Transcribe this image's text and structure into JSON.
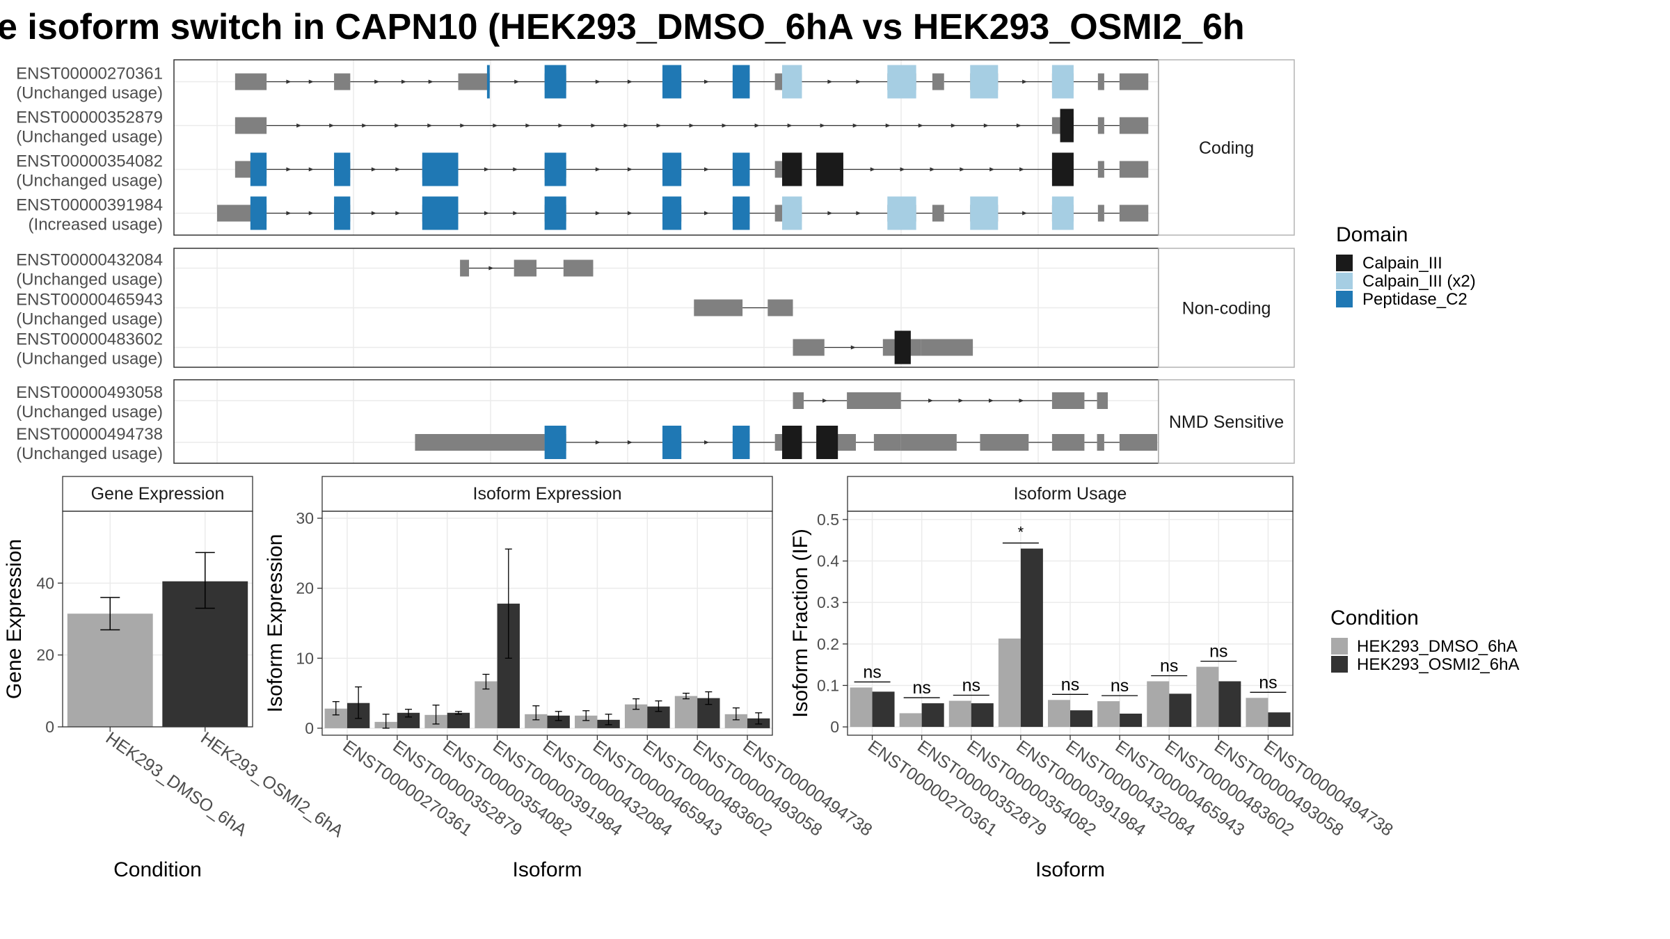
{
  "title": "e isoform switch in CAPN10 (HEK293_DMSO_6hA vs HEK293_OSMI2_6h",
  "colors": {
    "exon": "#808080",
    "calpain_iii": "#1a1a1a",
    "calpain_iii_x2": "#a6cee3",
    "peptidase_c2": "#1f78b4",
    "cond_dmso": "#a9a9a9",
    "cond_osmi2": "#333333",
    "grid": "#ebebeb",
    "strip_bg": "#ffffff"
  },
  "structure": {
    "coordinate_range": [
      0,
      1000
    ],
    "groups": [
      {
        "label": "Coding",
        "transcripts": [
          {
            "id": "ENST00000270361",
            "usage": "(Unchanged usage)",
            "exons": [
              [
                20,
                55
              ],
              [
                130,
                148
              ],
              [
                268,
                303
              ],
              [
                364,
                388
              ],
              [
                495,
                516
              ],
              [
                573,
                592
              ],
              [
                620,
                650
              ],
              [
                745,
                777
              ],
              [
                795,
                808
              ],
              [
                837,
                868
              ],
              [
                928,
                952
              ],
              [
                979,
                986
              ],
              [
                1003,
                1035
              ]
            ],
            "domains": [
              [
                300,
                303,
                "peptidase_c2"
              ],
              [
                364,
                388,
                "peptidase_c2"
              ],
              [
                495,
                516,
                "peptidase_c2"
              ],
              [
                573,
                592,
                "peptidase_c2"
              ],
              [
                628,
                650,
                "calpain_iii_x2"
              ],
              [
                745,
                777,
                "calpain_iii_x2"
              ],
              [
                837,
                868,
                "calpain_iii_x2"
              ],
              [
                928,
                952,
                "calpain_iii_x2"
              ]
            ]
          },
          {
            "id": "ENST00000352879",
            "usage": "(Unchanged usage)",
            "exons": [
              [
                20,
                55
              ],
              [
                928,
                952
              ],
              [
                979,
                986
              ],
              [
                1003,
                1035
              ]
            ],
            "domains": [
              [
                937,
                952,
                "calpain_iii"
              ]
            ]
          },
          {
            "id": "ENST00000354082",
            "usage": "(Unchanged usage)",
            "exons": [
              [
                20,
                55
              ],
              [
                130,
                148
              ],
              [
                228,
                268
              ],
              [
                364,
                388
              ],
              [
                495,
                516
              ],
              [
                573,
                592
              ],
              [
                620,
                650
              ],
              [
                666,
                696
              ],
              [
                928,
                952
              ],
              [
                979,
                986
              ],
              [
                1003,
                1035
              ]
            ],
            "domains": [
              [
                37,
                55,
                "peptidase_c2"
              ],
              [
                130,
                148,
                "peptidase_c2"
              ],
              [
                228,
                268,
                "peptidase_c2"
              ],
              [
                364,
                388,
                "peptidase_c2"
              ],
              [
                495,
                516,
                "peptidase_c2"
              ],
              [
                573,
                592,
                "peptidase_c2"
              ],
              [
                628,
                650,
                "calpain_iii"
              ],
              [
                666,
                696,
                "calpain_iii"
              ],
              [
                928,
                952,
                "calpain_iii"
              ]
            ]
          },
          {
            "id": "ENST00000391984",
            "usage": "(Increased usage)",
            "exons": [
              [
                0,
                55
              ],
              [
                130,
                148
              ],
              [
                228,
                268
              ],
              [
                364,
                388
              ],
              [
                495,
                516
              ],
              [
                573,
                592
              ],
              [
                620,
                650
              ],
              [
                745,
                777
              ],
              [
                795,
                808
              ],
              [
                837,
                868
              ],
              [
                928,
                952
              ],
              [
                979,
                986
              ],
              [
                1003,
                1035
              ]
            ],
            "domains": [
              [
                37,
                55,
                "peptidase_c2"
              ],
              [
                130,
                148,
                "peptidase_c2"
              ],
              [
                228,
                268,
                "peptidase_c2"
              ],
              [
                364,
                388,
                "peptidase_c2"
              ],
              [
                495,
                516,
                "peptidase_c2"
              ],
              [
                573,
                592,
                "peptidase_c2"
              ],
              [
                628,
                650,
                "calpain_iii_x2"
              ],
              [
                745,
                777,
                "calpain_iii_x2"
              ],
              [
                837,
                868,
                "calpain_iii_x2"
              ],
              [
                928,
                952,
                "calpain_iii_x2"
              ]
            ]
          }
        ]
      },
      {
        "label": "Non-coding",
        "transcripts": [
          {
            "id": "ENST00000432084",
            "usage": "(Unchanged usage)",
            "exons": [
              [
                270,
                280
              ],
              [
                330,
                355
              ],
              [
                385,
                418
              ]
            ],
            "domains": []
          },
          {
            "id": "ENST00000465943",
            "usage": "(Unchanged usage)",
            "exons": [
              [
                530,
                584
              ],
              [
                612,
                640
              ]
            ],
            "domains": []
          },
          {
            "id": "ENST00000483602",
            "usage": "(Unchanged usage)",
            "exons": [
              [
                640,
                675
              ],
              [
                740,
                753
              ],
              [
                753,
                766
              ],
              [
                766,
                782
              ],
              [
                782,
                840
              ]
            ],
            "domains": [
              [
                753,
                771,
                "calpain_iii"
              ]
            ]
          }
        ]
      },
      {
        "label": "NMD Sensitive",
        "transcripts": [
          {
            "id": "ENST00000493058",
            "usage": "(Unchanged usage)",
            "exons": [
              [
                640,
                652
              ],
              [
                700,
                760
              ],
              [
                928,
                964
              ],
              [
                978,
                990
              ]
            ],
            "domains": []
          },
          {
            "id": "ENST00000494738",
            "usage": "(Unchanged usage)",
            "exons": [
              [
                220,
                364
              ],
              [
                364,
                388
              ],
              [
                495,
                516
              ],
              [
                573,
                592
              ],
              [
                620,
                650
              ],
              [
                666,
                710
              ],
              [
                730,
                760
              ],
              [
                760,
                822
              ],
              [
                848,
                902
              ],
              [
                928,
                964
              ],
              [
                978,
                986
              ],
              [
                1003,
                1045
              ]
            ],
            "domains": [
              [
                364,
                388,
                "peptidase_c2"
              ],
              [
                495,
                516,
                "peptidase_c2"
              ],
              [
                573,
                592,
                "peptidase_c2"
              ],
              [
                628,
                650,
                "calpain_iii"
              ],
              [
                666,
                690,
                "calpain_iii"
              ]
            ]
          }
        ]
      }
    ]
  },
  "legend_domain": {
    "title": "Domain",
    "items": [
      {
        "label": "Calpain_III",
        "key": "calpain_iii"
      },
      {
        "label": "Calpain_III (x2)",
        "key": "calpain_iii_x2"
      },
      {
        "label": "Peptidase_C2",
        "key": "peptidase_c2"
      }
    ]
  },
  "legend_condition": {
    "title": "Condition",
    "items": [
      {
        "label": "HEK293_DMSO_6hA",
        "key": "cond_dmso"
      },
      {
        "label": "HEK293_OSMI2_6hA",
        "key": "cond_osmi2"
      }
    ]
  },
  "chart_data": [
    {
      "type": "bar",
      "title": "Gene Expression",
      "xlabel": "Condition",
      "ylabel": "Gene Expression",
      "ylim": [
        0,
        60
      ],
      "yticks": [
        0,
        20,
        40
      ],
      "categories": [
        "HEK293_DMSO_6hA",
        "HEK293_OSMI2_6hA"
      ],
      "values": [
        31.5,
        40.5
      ],
      "err_low": [
        27,
        33
      ],
      "err_high": [
        36,
        48.5
      ]
    },
    {
      "type": "bar",
      "title": "Isoform Expression",
      "xlabel": "Isoform",
      "ylabel": "Isoform Expression",
      "ylim": [
        -1,
        31
      ],
      "yticks": [
        0,
        10,
        20,
        30
      ],
      "categories": [
        "ENST00000270361",
        "ENST00000352879",
        "ENST00000354082",
        "ENST00000391984",
        "ENST00000432084",
        "ENST00000465943",
        "ENST00000483602",
        "ENST00000493058",
        "ENST00000494738"
      ],
      "series": [
        {
          "name": "HEK293_DMSO_6hA",
          "values": [
            2.8,
            0.9,
            1.9,
            6.7,
            2.0,
            1.8,
            3.4,
            4.6,
            2.0
          ],
          "err_low": [
            1.9,
            0.0,
            0.6,
            5.6,
            1.2,
            1.1,
            2.7,
            4.2,
            1.2
          ],
          "err_high": [
            3.8,
            2.0,
            3.3,
            7.7,
            3.2,
            2.5,
            4.2,
            5.0,
            2.9
          ]
        },
        {
          "name": "HEK293_OSMI2_6hA",
          "values": [
            3.6,
            2.2,
            2.2,
            17.8,
            1.8,
            1.2,
            3.1,
            4.3,
            1.4
          ],
          "err_low": [
            1.4,
            1.6,
            2.0,
            10.0,
            1.1,
            0.5,
            2.4,
            3.4,
            0.6
          ],
          "err_high": [
            5.9,
            2.7,
            2.4,
            25.6,
            2.4,
            2.0,
            3.9,
            5.2,
            2.2
          ]
        }
      ]
    },
    {
      "type": "bar",
      "title": "Isoform Usage",
      "xlabel": "Isoform",
      "ylabel": "Isoform Fraction (IF)",
      "ylim": [
        -0.02,
        0.52
      ],
      "yticks": [
        0.0,
        0.1,
        0.2,
        0.3,
        0.4,
        0.5
      ],
      "categories": [
        "ENST00000270361",
        "ENST00000352879",
        "ENST00000354082",
        "ENST00000391984",
        "ENST00000432084",
        "ENST00000465943",
        "ENST00000483602",
        "ENST00000493058",
        "ENST00000494738"
      ],
      "series": [
        {
          "name": "HEK293_DMSO_6hA",
          "values": [
            0.095,
            0.033,
            0.063,
            0.213,
            0.065,
            0.062,
            0.11,
            0.145,
            0.07
          ]
        },
        {
          "name": "HEK293_OSMI2_6hA",
          "values": [
            0.085,
            0.057,
            0.057,
            0.43,
            0.04,
            0.032,
            0.08,
            0.11,
            0.035
          ]
        }
      ],
      "significance": [
        "ns",
        "ns",
        "ns",
        "*",
        "ns",
        "ns",
        "ns",
        "ns",
        "ns"
      ]
    }
  ]
}
